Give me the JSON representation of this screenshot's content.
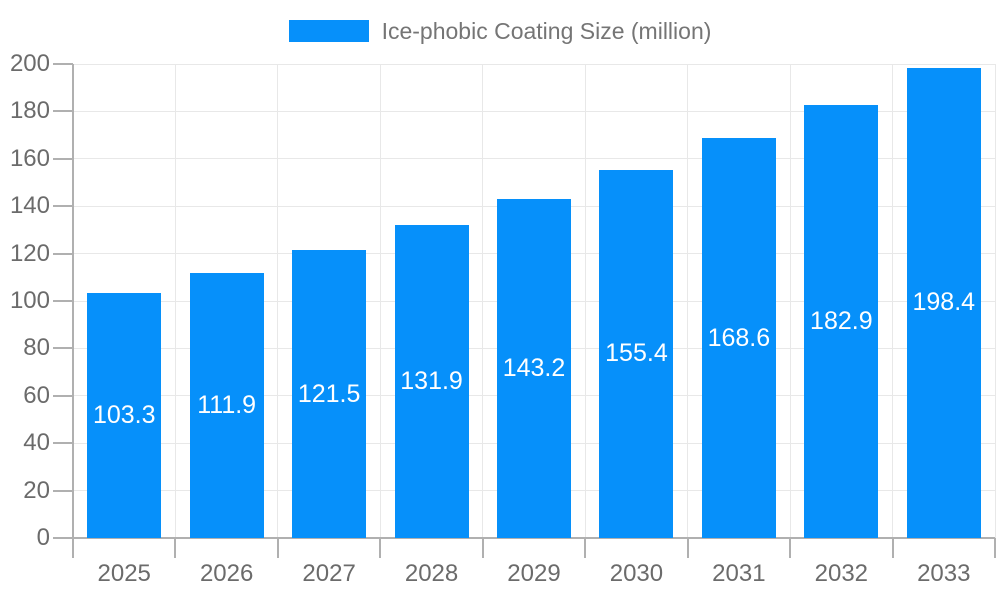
{
  "legend": {
    "label": "Ice-phobic Coating Size (million)"
  },
  "chart_data": {
    "type": "bar",
    "title": "Ice-phobic Coating Size (million)",
    "categories": [
      "2025",
      "2026",
      "2027",
      "2028",
      "2029",
      "2030",
      "2031",
      "2032",
      "2033"
    ],
    "values": [
      103.3,
      111.9,
      121.5,
      131.9,
      143.2,
      155.4,
      168.6,
      182.9,
      198.4
    ],
    "xlabel": "",
    "ylabel": "",
    "ylim": [
      0,
      200
    ],
    "yticks": [
      0,
      20,
      40,
      60,
      80,
      100,
      120,
      140,
      160,
      180,
      200
    ],
    "grid": true,
    "legend_position": "top-center",
    "value_labels": "inside-center",
    "colors": {
      "bar": "#0690fa",
      "axis": "#b0b0b0",
      "gridline": "#e8e8e8",
      "tick_label": "#6b6b6b",
      "legend_text": "#757575",
      "value_label": "#ffffff",
      "background": "#ffffff"
    }
  }
}
